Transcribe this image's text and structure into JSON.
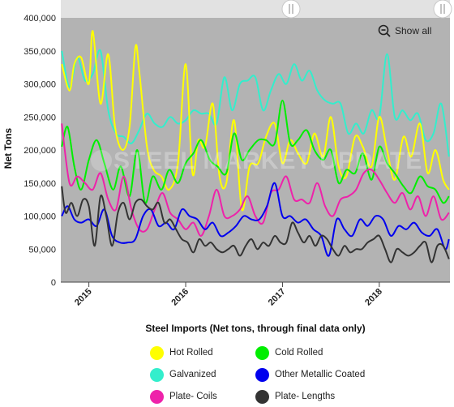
{
  "show_all_label": "Show all",
  "watermark": "STEEL MARKET UPDATE",
  "chart_data": {
    "type": "line",
    "title": "Steel Imports (Net tons, through final data only)",
    "xlabel": "",
    "ylabel": "Net Tons",
    "ylim": [
      0,
      400000
    ],
    "y_ticks": [
      "0",
      "50,000",
      "100,000",
      "150,000",
      "200,000",
      "250,000",
      "300,000",
      "350,000",
      "400,000"
    ],
    "y_tick_values": [
      0,
      50000,
      100000,
      150000,
      200000,
      250000,
      300000,
      350000,
      400000
    ],
    "x_tick_labels": [
      "2015",
      "2016",
      "2017",
      "2018"
    ],
    "x_tick_values": [
      2015.0,
      2016.0,
      2017.0,
      2018.0
    ],
    "xlim": [
      2014.71,
      2018.73
    ],
    "grid": false,
    "legend_position": "bottom",
    "background": "#b3b3b3",
    "series": [
      {
        "name": "Hot Rolled",
        "color": "#ffff00",
        "x": [
          2014.72,
          2014.8,
          2014.85,
          2014.92,
          2015.0,
          2015.04,
          2015.12,
          2015.2,
          2015.27,
          2015.35,
          2015.42,
          2015.48,
          2015.52,
          2015.6,
          2015.67,
          2015.75,
          2015.83,
          2015.92,
          2016.0,
          2016.07,
          2016.13,
          2016.2,
          2016.28,
          2016.35,
          2016.42,
          2016.5,
          2016.58,
          2016.66,
          2016.75,
          2016.83,
          2016.92,
          2017.0,
          2017.08,
          2017.16,
          2017.25,
          2017.33,
          2017.42,
          2017.5,
          2017.58,
          2017.66,
          2017.75,
          2017.83,
          2017.92,
          2018.0,
          2018.08,
          2018.16,
          2018.25,
          2018.33,
          2018.42,
          2018.5,
          2018.58,
          2018.66,
          2018.72
        ],
        "values": [
          330000,
          290000,
          330000,
          340000,
          300000,
          380000,
          270000,
          345000,
          235000,
          200000,
          235000,
          355000,
          320000,
          205000,
          170000,
          160000,
          140000,
          180000,
          330000,
          165000,
          215000,
          205000,
          270000,
          160000,
          150000,
          245000,
          110000,
          175000,
          180000,
          220000,
          240000,
          180000,
          215000,
          195000,
          180000,
          225000,
          190000,
          250000,
          175000,
          160000,
          220000,
          205000,
          175000,
          250000,
          200000,
          155000,
          220000,
          190000,
          240000,
          165000,
          200000,
          155000,
          140000
        ]
      },
      {
        "name": "Cold Rolled",
        "color": "#00ee00",
        "x": [
          2014.72,
          2014.78,
          2014.85,
          2014.92,
          2015.0,
          2015.08,
          2015.16,
          2015.25,
          2015.33,
          2015.42,
          2015.5,
          2015.58,
          2015.66,
          2015.75,
          2015.83,
          2015.92,
          2016.0,
          2016.08,
          2016.16,
          2016.25,
          2016.33,
          2016.42,
          2016.5,
          2016.58,
          2016.66,
          2016.75,
          2016.83,
          2016.92,
          2017.0,
          2017.08,
          2017.16,
          2017.25,
          2017.33,
          2017.42,
          2017.5,
          2017.58,
          2017.66,
          2017.75,
          2017.83,
          2017.92,
          2018.0,
          2018.08,
          2018.16,
          2018.25,
          2018.33,
          2018.42,
          2018.5,
          2018.58,
          2018.66,
          2018.72
        ],
        "values": [
          205000,
          235000,
          175000,
          140000,
          185000,
          215000,
          180000,
          140000,
          175000,
          130000,
          200000,
          120000,
          160000,
          140000,
          170000,
          150000,
          180000,
          195000,
          215000,
          185000,
          175000,
          165000,
          225000,
          185000,
          200000,
          215000,
          215000,
          210000,
          275000,
          210000,
          215000,
          230000,
          200000,
          185000,
          200000,
          150000,
          170000,
          165000,
          195000,
          155000,
          205000,
          180000,
          165000,
          145000,
          135000,
          160000,
          145000,
          140000,
          120000,
          130000
        ]
      },
      {
        "name": "Galvanized",
        "color": "#33eecc",
        "x": [
          2014.72,
          2014.8,
          2014.88,
          2014.96,
          2015.04,
          2015.12,
          2015.2,
          2015.28,
          2015.36,
          2015.44,
          2015.52,
          2015.6,
          2015.68,
          2015.76,
          2015.84,
          2015.92,
          2016.0,
          2016.08,
          2016.16,
          2016.24,
          2016.32,
          2016.4,
          2016.48,
          2016.56,
          2016.64,
          2016.72,
          2016.8,
          2016.88,
          2016.96,
          2017.04,
          2017.12,
          2017.2,
          2017.28,
          2017.36,
          2017.44,
          2017.52,
          2017.6,
          2017.68,
          2017.76,
          2017.84,
          2017.92,
          2018.0,
          2018.08,
          2018.16,
          2018.24,
          2018.32,
          2018.4,
          2018.48,
          2018.56,
          2018.64,
          2018.72
        ],
        "values": [
          350000,
          295000,
          340000,
          305000,
          315000,
          350000,
          260000,
          225000,
          220000,
          210000,
          230000,
          255000,
          240000,
          235000,
          250000,
          240000,
          245000,
          260000,
          255000,
          255000,
          240000,
          310000,
          260000,
          300000,
          305000,
          310000,
          260000,
          290000,
          315000,
          300000,
          330000,
          305000,
          320000,
          290000,
          275000,
          270000,
          270000,
          225000,
          240000,
          225000,
          260000,
          250000,
          345000,
          250000,
          260000,
          245000,
          255000,
          215000,
          225000,
          270000,
          190000
        ]
      },
      {
        "name": "Other Metallic Coated",
        "color": "#0000ee",
        "x": [
          2014.72,
          2014.78,
          2014.85,
          2014.92,
          2015.0,
          2015.08,
          2015.16,
          2015.24,
          2015.32,
          2015.4,
          2015.48,
          2015.56,
          2015.64,
          2015.72,
          2015.8,
          2015.88,
          2015.96,
          2016.04,
          2016.12,
          2016.2,
          2016.28,
          2016.36,
          2016.44,
          2016.52,
          2016.6,
          2016.68,
          2016.76,
          2016.84,
          2016.92,
          2017.0,
          2017.08,
          2017.16,
          2017.24,
          2017.32,
          2017.4,
          2017.48,
          2017.56,
          2017.64,
          2017.72,
          2017.8,
          2017.88,
          2017.96,
          2018.04,
          2018.12,
          2018.2,
          2018.28,
          2018.36,
          2018.44,
          2018.52,
          2018.6,
          2018.68,
          2018.72
        ],
        "values": [
          100000,
          115000,
          95000,
          90000,
          95000,
          85000,
          110000,
          70000,
          60000,
          60000,
          65000,
          100000,
          110000,
          85000,
          90000,
          80000,
          110000,
          100000,
          95000,
          80000,
          90000,
          70000,
          75000,
          85000,
          100000,
          95000,
          95000,
          115000,
          150000,
          100000,
          100000,
          90000,
          95000,
          80000,
          70000,
          40000,
          95000,
          80000,
          70000,
          95000,
          85000,
          100000,
          95000,
          70000,
          85000,
          80000,
          90000,
          75000,
          70000,
          80000,
          50000,
          65000
        ]
      },
      {
        "name": "Plate- Coils",
        "color": "#ee22aa",
        "x": [
          2014.72,
          2014.8,
          2014.88,
          2014.96,
          2015.04,
          2015.12,
          2015.2,
          2015.28,
          2015.36,
          2015.44,
          2015.52,
          2015.6,
          2015.68,
          2015.76,
          2015.84,
          2015.92,
          2016.0,
          2016.08,
          2016.16,
          2016.24,
          2016.32,
          2016.4,
          2016.48,
          2016.56,
          2016.64,
          2016.72,
          2016.8,
          2016.88,
          2016.96,
          2017.04,
          2017.12,
          2017.2,
          2017.28,
          2017.36,
          2017.44,
          2017.52,
          2017.6,
          2017.68,
          2017.76,
          2017.84,
          2017.92,
          2018.0,
          2018.08,
          2018.16,
          2018.24,
          2018.32,
          2018.4,
          2018.48,
          2018.56,
          2018.64,
          2018.72
        ],
        "values": [
          240000,
          150000,
          160000,
          150000,
          140000,
          165000,
          125000,
          110000,
          160000,
          110000,
          80000,
          80000,
          110000,
          135000,
          105000,
          95000,
          80000,
          90000,
          70000,
          100000,
          140000,
          100000,
          100000,
          110000,
          130000,
          100000,
          90000,
          135000,
          140000,
          160000,
          125000,
          125000,
          120000,
          150000,
          115000,
          100000,
          125000,
          130000,
          140000,
          165000,
          170000,
          155000,
          135000,
          120000,
          135000,
          110000,
          130000,
          100000,
          130000,
          95000,
          105000
        ]
      },
      {
        "name": "Plate- Lengths",
        "color": "#333333",
        "x": [
          2014.72,
          2014.76,
          2014.82,
          2014.88,
          2014.94,
          2015.0,
          2015.06,
          2015.12,
          2015.18,
          2015.24,
          2015.3,
          2015.36,
          2015.42,
          2015.48,
          2015.54,
          2015.6,
          2015.66,
          2015.72,
          2015.78,
          2015.84,
          2015.9,
          2015.96,
          2016.02,
          2016.08,
          2016.14,
          2016.2,
          2016.26,
          2016.32,
          2016.38,
          2016.44,
          2016.5,
          2016.56,
          2016.62,
          2016.68,
          2016.74,
          2016.8,
          2016.86,
          2016.92,
          2016.98,
          2017.04,
          2017.1,
          2017.16,
          2017.22,
          2017.28,
          2017.34,
          2017.4,
          2017.46,
          2017.52,
          2017.58,
          2017.64,
          2017.7,
          2017.76,
          2017.82,
          2017.88,
          2017.94,
          2018.0,
          2018.06,
          2018.12,
          2018.18,
          2018.24,
          2018.3,
          2018.36,
          2018.42,
          2018.48,
          2018.54,
          2018.6,
          2018.66,
          2018.72
        ],
        "values": [
          145000,
          105000,
          120000,
          100000,
          125000,
          115000,
          55000,
          130000,
          100000,
          55000,
          105000,
          120000,
          95000,
          120000,
          125000,
          115000,
          110000,
          120000,
          90000,
          95000,
          80000,
          65000,
          60000,
          45000,
          65000,
          55000,
          60000,
          50000,
          45000,
          50000,
          55000,
          40000,
          55000,
          65000,
          50000,
          60000,
          55000,
          70000,
          60000,
          60000,
          90000,
          75000,
          60000,
          70000,
          55000,
          70000,
          65000,
          50000,
          40000,
          55000,
          45000,
          50000,
          50000,
          60000,
          65000,
          70000,
          50000,
          30000,
          50000,
          45000,
          40000,
          45000,
          55000,
          60000,
          30000,
          55000,
          55000,
          35000
        ]
      }
    ]
  }
}
